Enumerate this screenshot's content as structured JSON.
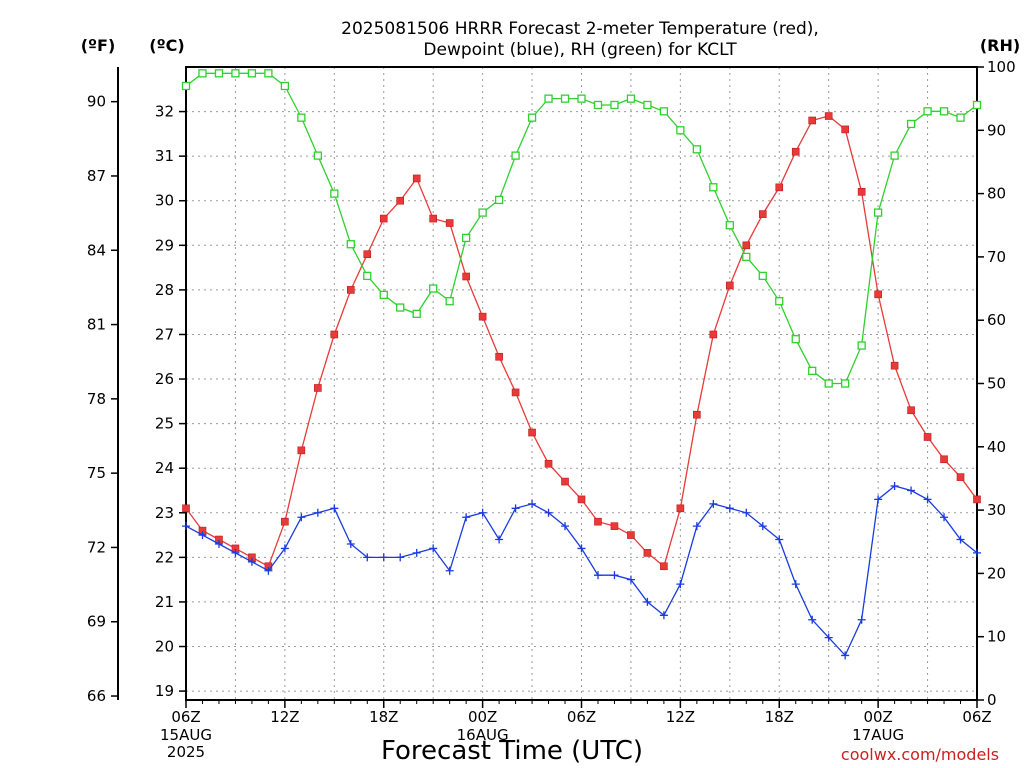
{
  "chart_data": {
    "type": "line",
    "title_line1": "2025081506 HRRR Forecast 2-meter Temperature (red),",
    "title_line2": "Dewpoint (blue), RH (green) for KCLT",
    "xlabel": "Forecast Time (UTC)",
    "credit": "coolwx.com/models",
    "y_left_outer_unit": "(ºF)",
    "y_left_inner_unit": "(ºC)",
    "y_right_unit": "(RH)",
    "y_c_range": [
      18.8,
      33.0
    ],
    "y_c_ticks": [
      19,
      20,
      21,
      22,
      23,
      24,
      25,
      26,
      27,
      28,
      29,
      30,
      31,
      32
    ],
    "y_f_ticks": [
      66,
      69,
      72,
      75,
      78,
      81,
      84,
      87,
      90
    ],
    "y_rh_range": [
      0,
      100
    ],
    "y_rh_ticks": [
      0,
      10,
      20,
      30,
      40,
      50,
      60,
      70,
      80,
      90,
      100
    ],
    "grid": true,
    "x_range_hours": [
      0,
      48
    ],
    "x_ticks": [
      {
        "hour": 0,
        "label": "06Z",
        "date": "15AUG",
        "year": "2025"
      },
      {
        "hour": 6,
        "label": "12Z",
        "date": "",
        "year": ""
      },
      {
        "hour": 12,
        "label": "18Z",
        "date": "",
        "year": ""
      },
      {
        "hour": 18,
        "label": "00Z",
        "date": "16AUG",
        "year": ""
      },
      {
        "hour": 24,
        "label": "06Z",
        "date": "",
        "year": ""
      },
      {
        "hour": 30,
        "label": "12Z",
        "date": "",
        "year": ""
      },
      {
        "hour": 36,
        "label": "18Z",
        "date": "",
        "year": ""
      },
      {
        "hour": 42,
        "label": "00Z",
        "date": "17AUG",
        "year": ""
      },
      {
        "hour": 48,
        "label": "06Z",
        "date": "",
        "year": ""
      }
    ],
    "series": [
      {
        "color": "#e83a3a",
        "axis": "celsius",
        "marker": "filled-square",
        "hours": [
          0,
          1,
          2,
          3,
          4,
          5,
          6,
          7,
          8,
          9,
          10,
          11,
          12,
          13,
          14,
          15,
          16,
          17,
          18,
          19,
          20,
          21,
          22,
          23,
          24,
          25,
          26,
          27,
          28,
          29,
          30,
          31,
          32,
          33,
          34,
          35,
          36,
          37,
          38,
          39,
          40,
          41,
          42,
          43,
          44,
          45,
          46,
          47,
          48
        ],
        "values": [
          23.1,
          22.6,
          22.4,
          22.2,
          22.0,
          21.8,
          22.8,
          24.4,
          25.8,
          27.0,
          28.0,
          28.8,
          29.6,
          30.0,
          30.5,
          29.6,
          29.5,
          28.3,
          27.4,
          26.5,
          25.7,
          24.8,
          24.1,
          23.7,
          23.3,
          22.8,
          22.7,
          22.5,
          22.1,
          21.8,
          23.1,
          25.2,
          27.0,
          28.1,
          29.0,
          29.7,
          30.3,
          31.1,
          31.8,
          31.9,
          31.6,
          30.2,
          27.9,
          26.3,
          25.3,
          24.7,
          24.2,
          23.8,
          23.3
        ]
      },
      {
        "color": "#1a3be0",
        "axis": "celsius",
        "marker": "plus",
        "hours": [
          0,
          1,
          2,
          3,
          4,
          5,
          6,
          7,
          8,
          9,
          10,
          11,
          12,
          13,
          14,
          15,
          16,
          17,
          18,
          19,
          20,
          21,
          22,
          23,
          24,
          25,
          26,
          27,
          28,
          29,
          30,
          31,
          32,
          33,
          34,
          35,
          36,
          37,
          38,
          39,
          40,
          41,
          42,
          43,
          44,
          45,
          46,
          47,
          48
        ],
        "values": [
          22.7,
          22.5,
          22.3,
          22.1,
          21.9,
          21.7,
          22.2,
          22.9,
          23.0,
          23.1,
          22.3,
          22.0,
          22.0,
          22.0,
          22.1,
          22.2,
          21.7,
          22.9,
          23.0,
          22.4,
          23.1,
          23.2,
          23.0,
          22.7,
          22.2,
          21.6,
          21.6,
          21.5,
          21.0,
          20.7,
          21.4,
          22.7,
          23.2,
          23.1,
          23.0,
          22.7,
          22.4,
          21.4,
          20.6,
          20.2,
          19.8,
          20.6,
          23.3,
          23.6,
          23.5,
          23.3,
          22.9,
          22.4,
          22.1
        ]
      },
      {
        "color": "#2fd02f",
        "axis": "rh",
        "marker": "open-square",
        "hours": [
          0,
          1,
          2,
          3,
          4,
          5,
          6,
          7,
          8,
          9,
          10,
          11,
          12,
          13,
          14,
          15,
          16,
          17,
          18,
          19,
          20,
          21,
          22,
          23,
          24,
          25,
          26,
          27,
          28,
          29,
          30,
          31,
          32,
          33,
          34,
          35,
          36,
          37,
          38,
          39,
          40,
          41,
          42,
          43,
          44,
          45,
          46,
          47,
          48
        ],
        "values": [
          97,
          99,
          99,
          99,
          99,
          99,
          97,
          92,
          86,
          80,
          72,
          67,
          64,
          62,
          61,
          65,
          63,
          73,
          77,
          79,
          86,
          92,
          95,
          95,
          95,
          94,
          94,
          95,
          94,
          93,
          90,
          87,
          81,
          75,
          70,
          67,
          63,
          57,
          52,
          50,
          50,
          56,
          77,
          86,
          91,
          93,
          93,
          92,
          94
        ]
      }
    ]
  }
}
